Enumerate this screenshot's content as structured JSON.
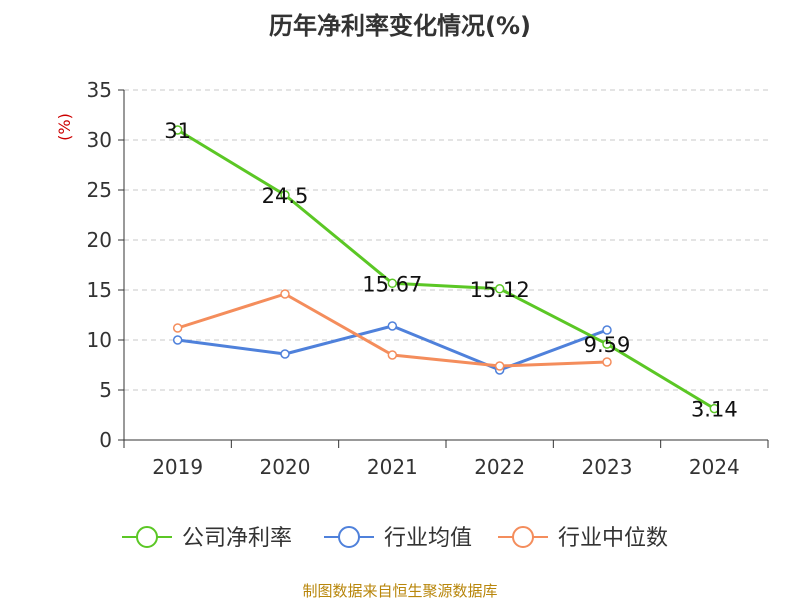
{
  "chart_data": {
    "type": "line",
    "title": "历年净利率变化情况(%)",
    "ylabel": "(%)",
    "xlabel": "",
    "categories": [
      "2019",
      "2020",
      "2021",
      "2022",
      "2023",
      "2024"
    ],
    "ylim": [
      0,
      35
    ],
    "yticks": [
      0,
      5,
      10,
      15,
      20,
      25,
      30,
      35
    ],
    "grid": true,
    "legend_position": "bottom",
    "series": [
      {
        "name": "公司净利率",
        "color": "#5bc725",
        "values": [
          31,
          24.5,
          15.67,
          15.12,
          9.59,
          3.14
        ],
        "labels": [
          "31",
          "24.5",
          "15.67",
          "15.12",
          "9.59",
          "3.14"
        ]
      },
      {
        "name": "行业均值",
        "color": "#4f81db",
        "values": [
          10.0,
          8.6,
          11.4,
          7.0,
          11.0,
          null
        ]
      },
      {
        "name": "行业中位数",
        "color": "#f48d5c",
        "values": [
          11.2,
          14.6,
          8.5,
          7.4,
          7.8,
          null
        ]
      }
    ]
  },
  "footer": {
    "source": "制图数据来自恒生聚源数据库"
  }
}
